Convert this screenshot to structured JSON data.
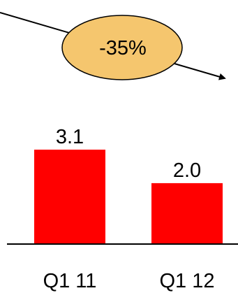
{
  "chart_data": {
    "type": "bar",
    "categories": [
      "Q1 11",
      "Q1 12"
    ],
    "values": [
      3.1,
      2.0
    ],
    "value_labels": [
      "3.1",
      "2.0"
    ],
    "ylim": [
      0,
      3.1
    ],
    "grid": false,
    "legend": "none",
    "annotation": {
      "text": "-35%",
      "shape": "ellipse",
      "arrow": "downward trend from first bar to second bar"
    },
    "colors": {
      "bar": "#ff0000",
      "annotation_fill": "#f5c66e",
      "annotation_stroke": "#000000",
      "axis": "#000000"
    }
  }
}
